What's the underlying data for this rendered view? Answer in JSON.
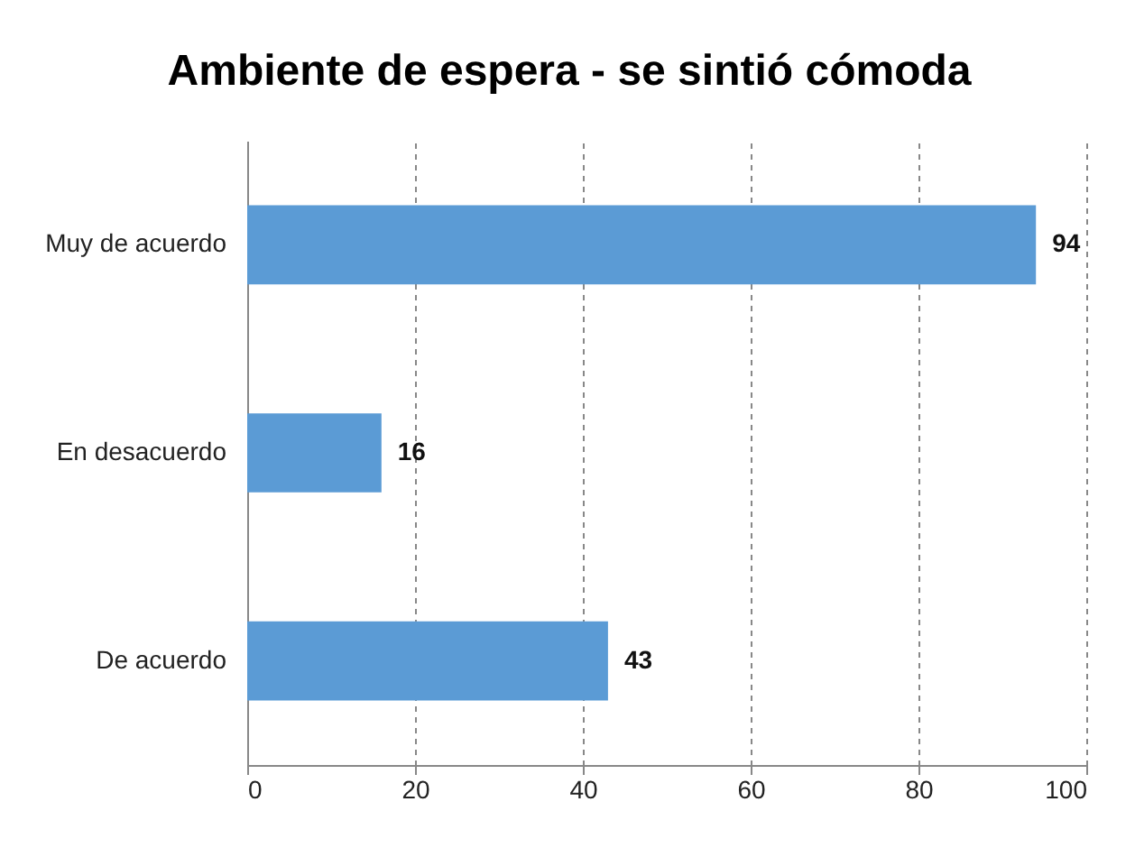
{
  "chart_data": {
    "type": "bar",
    "orientation": "horizontal",
    "title": "Ambiente de espera - se sintió cómoda",
    "categories": [
      "Muy de acuerdo",
      "En desacuerdo",
      "De acuerdo"
    ],
    "values": [
      94,
      16,
      43
    ],
    "color": "#5b9bd5",
    "xlim": [
      0,
      100
    ],
    "xticks": [
      0,
      20,
      40,
      60,
      80,
      100
    ],
    "grid": "x",
    "data_labels": true
  }
}
